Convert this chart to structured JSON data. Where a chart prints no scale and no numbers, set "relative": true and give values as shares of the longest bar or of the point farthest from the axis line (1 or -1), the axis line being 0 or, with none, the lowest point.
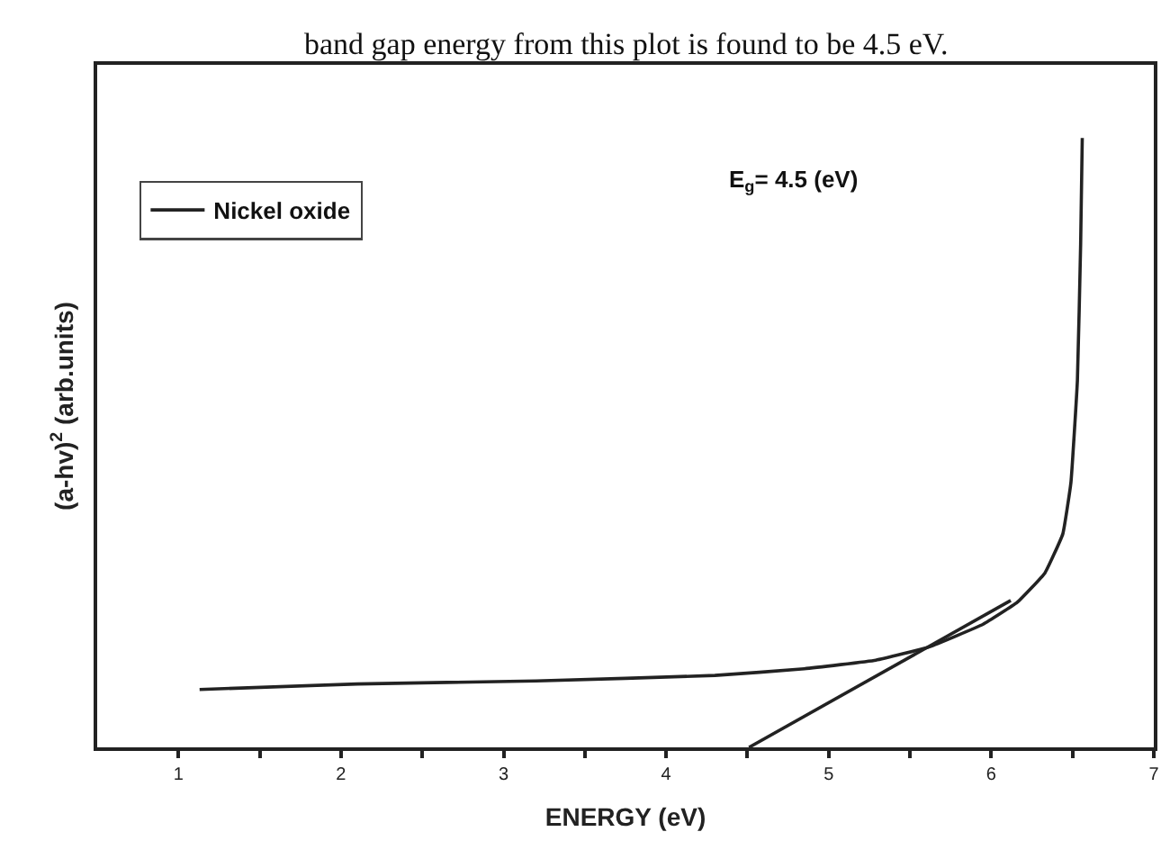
{
  "chart_data": {
    "type": "line",
    "relative": true,
    "xlabel": "ENERGY (eV)",
    "ylabel": "(a-hv)$^{2}$ (arb.units)",
    "xlim": [
      0.5,
      7
    ],
    "xticks": [
      1,
      {
        "value": 1.5,
        "label": null
      },
      2,
      {
        "value": 2.5,
        "label": null
      },
      3,
      {
        "value": 3.5,
        "label": null
      },
      4,
      {
        "value": 4.5,
        "label": null
      },
      5,
      {
        "value": 5.5,
        "label": null
      },
      6,
      {
        "value": 6.5,
        "label": null
      },
      7
    ],
    "tick_labels": "x",
    "legend": "top left",
    "line_style": "solid",
    "marker": "none",
    "annotations": [
      "band gap energy from this plot is found to be 4.5 eV.",
      "E$_{g}$= 4.5 (eV)"
    ],
    "series": [
      {
        "name": "Nickel oxide",
        "color": "#222222",
        "x": [
          1.13,
          2.1,
          3.2,
          4.3,
          4.85,
          5.29,
          5.62,
          5.95,
          6.16,
          6.33,
          6.44,
          6.49,
          6.53,
          6.55,
          6.56
        ],
        "values": [
          0.095,
          0.104,
          0.109,
          0.118,
          0.129,
          0.143,
          0.165,
          0.202,
          0.238,
          0.286,
          0.35,
          0.434,
          0.602,
          0.826,
          1.0
        ]
      },
      {
        "type": "line",
        "color": "#222222",
        "x": [
          4.51,
          6.12
        ],
        "values": [
          0.0,
          0.241
        ]
      }
    ]
  }
}
